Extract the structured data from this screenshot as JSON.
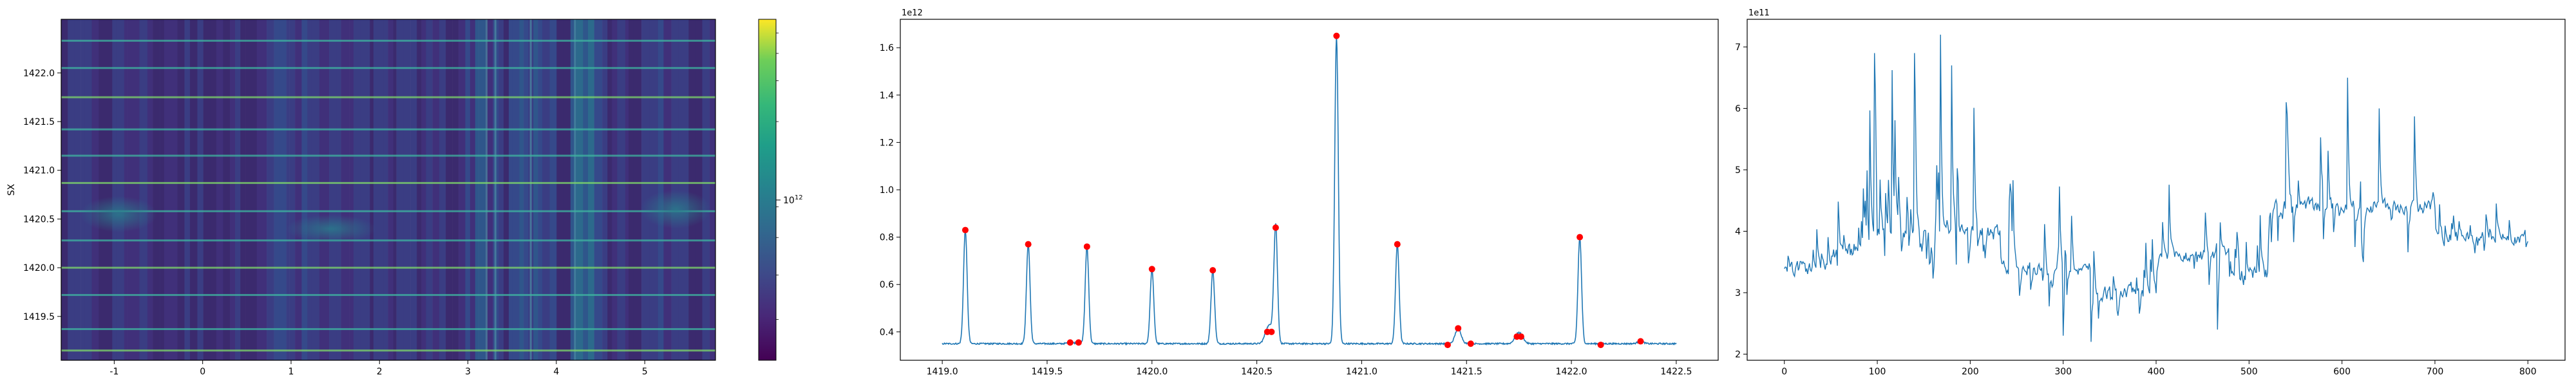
{
  "chart_data": [
    {
      "type": "heatmap",
      "ylabel": "SX",
      "xlim": [
        -1.6,
        5.8
      ],
      "ylim": [
        1419.05,
        1422.55
      ],
      "x_ticks": [
        -1,
        0,
        1,
        2,
        3,
        4,
        5
      ],
      "y_ticks": [
        1419.5,
        1420.0,
        1420.5,
        1421.0,
        1421.5,
        1422.0
      ],
      "y_tick_labels": [
        "1419.5",
        "1420.0",
        "1420.5",
        "1421.0",
        "1421.5",
        "1422.0"
      ],
      "colorscale": "viridis",
      "color_scale": "log",
      "colorbar_tick_label": "10^12",
      "bright_rows": [
        1419.15,
        1419.37,
        1419.72,
        1420.0,
        1420.28,
        1420.58,
        1420.87,
        1421.15,
        1421.42,
        1421.75,
        1422.05,
        1422.33
      ],
      "bright_columns": [
        3.2,
        3.3,
        3.7,
        4.2
      ]
    },
    {
      "type": "line",
      "offset_label": "1e12",
      "xlim": [
        1418.8,
        1422.7
      ],
      "ylim": [
        0.28,
        1.72
      ],
      "x_ticks": [
        1419.0,
        1419.5,
        1420.0,
        1420.5,
        1421.0,
        1421.5,
        1422.0,
        1422.5
      ],
      "x_tick_labels": [
        "1419.0",
        "1419.5",
        "1420.0",
        "1420.5",
        "1421.0",
        "1421.5",
        "1422.0",
        "1422.5"
      ],
      "y_ticks": [
        0.4,
        0.6,
        0.8,
        1.0,
        1.2,
        1.4,
        1.6
      ],
      "y_tick_labels": [
        "0.4",
        "0.6",
        "0.8",
        "1.0",
        "1.2",
        "1.4",
        "1.6"
      ],
      "baseline": 0.35,
      "line_color": "#1f77b4",
      "marker_color": "#ff0000",
      "peaks": [
        {
          "x": 1419.11,
          "y": 0.83
        },
        {
          "x": 1419.41,
          "y": 0.77
        },
        {
          "x": 1419.61,
          "y": 0.355
        },
        {
          "x": 1419.65,
          "y": 0.355
        },
        {
          "x": 1419.69,
          "y": 0.76
        },
        {
          "x": 1420.0,
          "y": 0.665
        },
        {
          "x": 1420.29,
          "y": 0.66
        },
        {
          "x": 1420.55,
          "y": 0.4
        },
        {
          "x": 1420.57,
          "y": 0.4
        },
        {
          "x": 1420.59,
          "y": 0.84
        },
        {
          "x": 1420.88,
          "y": 1.65
        },
        {
          "x": 1421.17,
          "y": 0.77
        },
        {
          "x": 1421.41,
          "y": 0.345
        },
        {
          "x": 1421.46,
          "y": 0.415
        },
        {
          "x": 1421.52,
          "y": 0.35
        },
        {
          "x": 1421.74,
          "y": 0.38
        },
        {
          "x": 1421.76,
          "y": 0.38
        },
        {
          "x": 1422.04,
          "y": 0.8
        },
        {
          "x": 1422.14,
          "y": 0.345
        },
        {
          "x": 1422.33,
          "y": 0.36
        }
      ],
      "x_end": 1422.5
    },
    {
      "type": "line",
      "offset_label": "1e11",
      "xlim": [
        -40,
        840
      ],
      "ylim": [
        1.9,
        7.45
      ],
      "x_ticks": [
        0,
        100,
        200,
        300,
        400,
        500,
        600,
        700,
        800
      ],
      "y_ticks": [
        2,
        3,
        4,
        5,
        6,
        7
      ],
      "line_color": "#1f77b4",
      "n_points": 801,
      "segments": [
        {
          "x": [
            0,
            50
          ],
          "base": 3.4,
          "amp": 1.2,
          "floor": 3.1
        },
        {
          "x": [
            50,
            90
          ],
          "base": 3.7,
          "amp": 1.5,
          "floor": 3.2
        },
        {
          "x": [
            90,
            230
          ],
          "base": 4.0,
          "amp": 3.0,
          "floor": 3.0
        },
        {
          "x": [
            230,
            330
          ],
          "base": 3.4,
          "amp": 2.0,
          "floor": 2.3
        },
        {
          "x": [
            330,
            400
          ],
          "base": 3.0,
          "amp": 1.0,
          "floor": 2.2
        },
        {
          "x": [
            400,
            480
          ],
          "base": 3.6,
          "amp": 2.2,
          "floor": 2.4
        },
        {
          "x": [
            480,
            520
          ],
          "base": 3.3,
          "amp": 1.2,
          "floor": 2.8
        },
        {
          "x": [
            520,
            700
          ],
          "base": 4.4,
          "amp": 1.8,
          "floor": 3.0
        },
        {
          "x": [
            700,
            800
          ],
          "base": 3.9,
          "amp": 0.6,
          "floor": 3.6
        }
      ],
      "notable": [
        {
          "x": 97,
          "y": 6.9
        },
        {
          "x": 140,
          "y": 6.9
        },
        {
          "x": 168,
          "y": 7.2
        },
        {
          "x": 180,
          "y": 6.7
        },
        {
          "x": 540,
          "y": 6.1
        },
        {
          "x": 606,
          "y": 6.5
        },
        {
          "x": 640,
          "y": 6.0
        },
        {
          "x": 300,
          "y": 2.3
        },
        {
          "x": 330,
          "y": 2.2
        },
        {
          "x": 466,
          "y": 2.4
        }
      ]
    }
  ]
}
